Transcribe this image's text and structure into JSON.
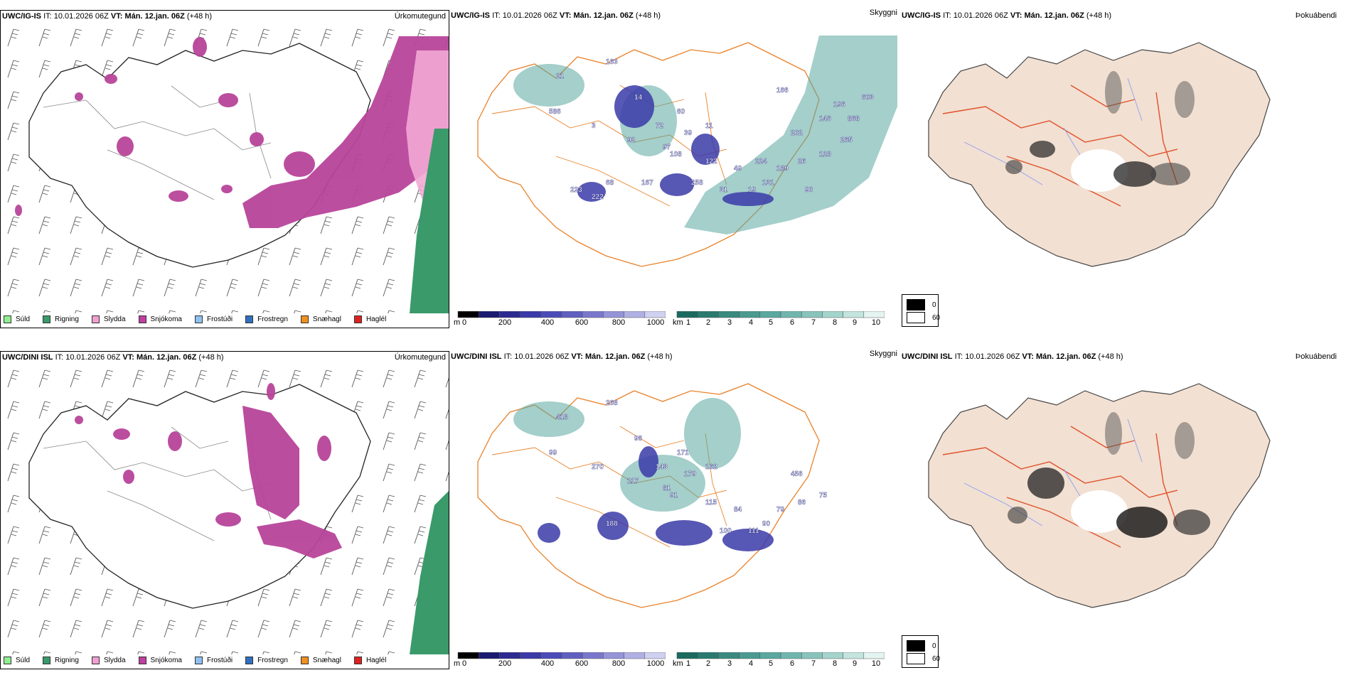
{
  "rows": [
    {
      "model": "UWC/IG-IS",
      "it_label": "IT:",
      "it_value": "10.01.2026 06Z",
      "vt_label": "VT:",
      "vt_value": "Mán. 12.jan. 06Z",
      "lead": "(+48 h)",
      "titles": {
        "precip": "Úrkomutegund",
        "cloud": "Skyggni",
        "fog": "Þokuábendi"
      },
      "labels": [
        "21",
        "163",
        "586",
        "3",
        "68",
        "92",
        "97",
        "14",
        "60",
        "72",
        "11",
        "108",
        "39",
        "122",
        "49",
        "31",
        "19",
        "131",
        "189",
        "26",
        "128",
        "202",
        "146",
        "166",
        "196",
        "868",
        "603",
        "265",
        "90",
        "224",
        "258",
        "167",
        "222",
        "223"
      ]
    },
    {
      "model": "UWC/DINI ISL",
      "it_label": "IT:",
      "it_value": "10.01.2026 06Z",
      "vt_label": "VT:",
      "vt_value": "Mán. 12.jan. 06Z",
      "lead": "(+48 h)",
      "titles": {
        "precip": "Úrkomutegund",
        "cloud": "Skyggni",
        "fog": "Þokuábendi"
      },
      "labels": [
        "418",
        "268",
        "99",
        "270",
        "188",
        "117",
        "81",
        "96",
        "171",
        "143",
        "162",
        "91",
        "179",
        "115",
        "84",
        "100",
        "111",
        "90",
        "79",
        "86",
        "75",
        "456"
      ]
    }
  ],
  "precip_legend": [
    {
      "label": "Súld",
      "color": "#90ee90"
    },
    {
      "label": "Rigning",
      "color": "#3a9a6a"
    },
    {
      "label": "Slydda",
      "color": "#f0a0d0"
    },
    {
      "label": "Snjókoma",
      "color": "#c040a0"
    },
    {
      "label": "Frostúði",
      "color": "#90c0f0"
    },
    {
      "label": "Frostregn",
      "color": "#3070c0"
    },
    {
      "label": "Snæhagl",
      "color": "#f09020"
    },
    {
      "label": "Haglél",
      "color": "#e02020"
    }
  ],
  "height_bar": {
    "unit": "m",
    "ticks": [
      "0",
      "200",
      "400",
      "600",
      "800",
      "1000"
    ],
    "colors": [
      "#000000",
      "#1a1a70",
      "#2a2a90",
      "#3a3aa8",
      "#4c4cb8",
      "#6060c0",
      "#7a78cc",
      "#9494d8",
      "#b0b0e4",
      "#d0d0f0"
    ]
  },
  "visibility_bar": {
    "unit": "km",
    "ticks": [
      "1",
      "2",
      "3",
      "4",
      "5",
      "6",
      "7",
      "8",
      "9",
      "10"
    ],
    "colors": [
      "#1a6a60",
      "#2a7a70",
      "#3a8a80",
      "#4a9a90",
      "#5aa8a0",
      "#70b6ae",
      "#88c4bc",
      "#a4d4cc",
      "#c4e4de",
      "#e4f4f0"
    ]
  },
  "fog_legend": [
    {
      "label": "0",
      "color": "#000000"
    },
    {
      "label": "60",
      "color": "#ffffff"
    }
  ]
}
